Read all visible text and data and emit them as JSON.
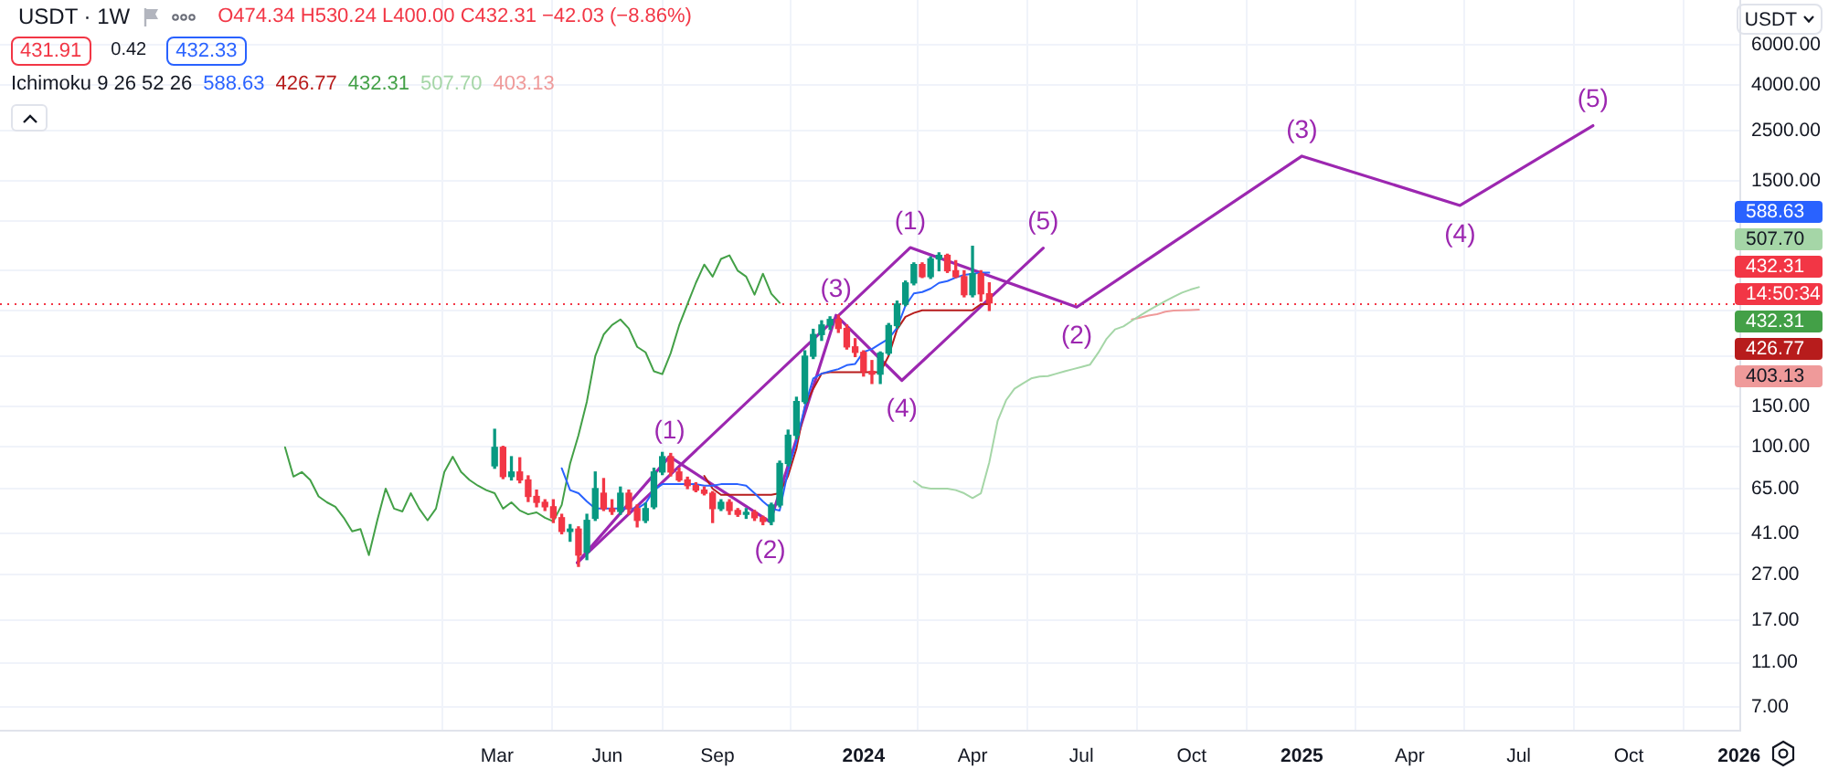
{
  "chart_data": {
    "type": "candlestick",
    "title": "USDT · 1W",
    "ylabel": "USDT",
    "legend_title": "Ichimoku 9 26 52 26",
    "legend": "top right",
    "log": true,
    "grid": true,
    "marker": "none",
    "annotations": [
      "O474.34 H530.24 L400.00 C432.31 −42.03 (−8.86%)",
      "431.91",
      "0.42",
      "432.33",
      "14:50:34",
      {
        "text": "(1)",
        "x": "2023-07-23",
        "y": 90.1
      },
      {
        "text": "(2)",
        "x": "2023-10-15",
        "y": 46.3
      },
      {
        "text": "(3)",
        "x": "2023-12-09",
        "y": 381
      },
      {
        "text": "(4)",
        "x": "2024-02-02",
        "y": 196
      },
      {
        "text": "(5)",
        "x": "2024-05-30",
        "y": 756
      },
      {
        "text": "(1)",
        "x": "2024-02-09",
        "y": 760
      },
      {
        "text": "(2)",
        "x": "2024-06-27",
        "y": 414
      },
      {
        "text": "(3)",
        "x": "2025-01-01",
        "y": 1932
      },
      {
        "text": "(4)",
        "x": "2025-05-13",
        "y": 1168
      },
      {
        "text": "(5)",
        "x": "2025-09-01",
        "y": 2638
      }
    ],
    "xlim": [
      "2022-01-10",
      "2026-01-02"
    ],
    "xticks": [
      {
        "value": "2023-03-01",
        "label": "Mar"
      },
      {
        "value": "2023-06-01",
        "label": "Jun"
      },
      {
        "value": "2023-09-01",
        "label": "Sep"
      },
      {
        "value": "2024-01-01",
        "label": "2024"
      },
      {
        "value": "2024-04-01",
        "label": "Apr"
      },
      {
        "value": "2024-07-01",
        "label": "Jul"
      },
      {
        "value": "2024-10-01",
        "label": "Oct"
      },
      {
        "value": "2025-01-01",
        "label": "2025"
      },
      {
        "value": "2025-04-01",
        "label": "Apr"
      },
      {
        "value": "2025-07-01",
        "label": "Jul"
      },
      {
        "value": "2025-10-01",
        "label": "Oct"
      },
      {
        "value": "2026-01-01",
        "label": "2026"
      }
    ],
    "ylim": [
      5.5,
      9500
    ],
    "yticks": [
      {
        "value": 7,
        "label": "7.00"
      },
      {
        "value": 11,
        "label": "11.00"
      },
      {
        "value": 17,
        "label": "17.00"
      },
      {
        "value": 27,
        "label": "27.00"
      },
      {
        "value": 41,
        "label": "41.00"
      },
      {
        "value": 65,
        "label": "65.00"
      },
      {
        "value": 100,
        "label": "100.00"
      },
      {
        "value": 150,
        "label": "150.00"
      },
      {
        "value": 250,
        "label": null
      },
      {
        "value": 400,
        "label": null
      },
      {
        "value": 600,
        "label": null
      },
      {
        "value": 1000,
        "label": null
      },
      {
        "value": 1500,
        "label": "1500.00"
      },
      {
        "value": 2500,
        "label": "2500.00"
      },
      {
        "value": 4000,
        "label": "4000.00"
      },
      {
        "value": 6000,
        "label": "6000.00"
      }
    ],
    "ref_lines": [
      {
        "axis": "y",
        "value": 432.31,
        "label": "432.31",
        "color": "#f23645",
        "line_style": "dotted"
      }
    ],
    "x": [
      "2023-02-27",
      "2023-03-06",
      "2023-03-13",
      "2023-03-20",
      "2023-03-27",
      "2023-04-03",
      "2023-04-10",
      "2023-04-17",
      "2023-04-24",
      "2023-05-01",
      "2023-05-08",
      "2023-05-15",
      "2023-05-22",
      "2023-05-29",
      "2023-06-05",
      "2023-06-12",
      "2023-06-19",
      "2023-06-26",
      "2023-07-03",
      "2023-07-10",
      "2023-07-17",
      "2023-07-24",
      "2023-07-31",
      "2023-08-07",
      "2023-08-14",
      "2023-08-21",
      "2023-08-28",
      "2023-09-04",
      "2023-09-11",
      "2023-09-18",
      "2023-09-25",
      "2023-10-02",
      "2023-10-09",
      "2023-10-16",
      "2023-10-23",
      "2023-10-30",
      "2023-11-06",
      "2023-11-13",
      "2023-11-20",
      "2023-11-27",
      "2023-12-04",
      "2023-12-11",
      "2023-12-18",
      "2023-12-25",
      "2024-01-01",
      "2024-01-08",
      "2024-01-15",
      "2024-01-22",
      "2024-01-29",
      "2024-02-05",
      "2024-02-12",
      "2024-02-19",
      "2024-02-26",
      "2024-03-04",
      "2024-03-11",
      "2024-03-18",
      "2024-03-25",
      "2024-04-01",
      "2024-04-08",
      "2024-04-15"
    ],
    "ohlc": [
      [
        82,
        119,
        80,
        99
      ],
      [
        99,
        100,
        72,
        73.5
      ],
      [
        73.5,
        90,
        71,
        77
      ],
      [
        77,
        89,
        69,
        71
      ],
      [
        71,
        74,
        57,
        60
      ],
      [
        60,
        64,
        54,
        56.5
      ],
      [
        56.5,
        58,
        52,
        54
      ],
      [
        54,
        58,
        46,
        48.3
      ],
      [
        48.3,
        50,
        41,
        42
      ],
      [
        42,
        45,
        38,
        43
      ],
      [
        43,
        44,
        29.4,
        33
      ],
      [
        34,
        50,
        31.5,
        47
      ],
      [
        48,
        77,
        47,
        65
      ],
      [
        62,
        72,
        52,
        53
      ],
      [
        53,
        58,
        50,
        51.5
      ],
      [
        51.5,
        66,
        50,
        62
      ],
      [
        62,
        64,
        50,
        53
      ],
      [
        53,
        55,
        44,
        47
      ],
      [
        47,
        56,
        46,
        53
      ],
      [
        54,
        80,
        53,
        77
      ],
      [
        77,
        94,
        75,
        90
      ],
      [
        90,
        93,
        74,
        77
      ],
      [
        77,
        80,
        70,
        71
      ],
      [
        71,
        73,
        65,
        67
      ],
      [
        67,
        69,
        63,
        64
      ],
      [
        64,
        66,
        61,
        62
      ],
      [
        62,
        63,
        46,
        53
      ],
      [
        53,
        58,
        52,
        56.5
      ],
      [
        56.5,
        58,
        50,
        52
      ],
      [
        52,
        53,
        49,
        50
      ],
      [
        50,
        53,
        48,
        51
      ],
      [
        51,
        52,
        47,
        48.3
      ],
      [
        48.3,
        49,
        45,
        46.5
      ],
      [
        46.5,
        56,
        45,
        55
      ],
      [
        55,
        86,
        54,
        84
      ],
      [
        84,
        118,
        82,
        112
      ],
      [
        112,
        165,
        108,
        158
      ],
      [
        158,
        265,
        155,
        251
      ],
      [
        251,
        330,
        245,
        313
      ],
      [
        313,
        360,
        295,
        345
      ],
      [
        345,
        375,
        330,
        365
      ],
      [
        365,
        381,
        320,
        333
      ],
      [
        333,
        345,
        270,
        276
      ],
      [
        276,
        300,
        250,
        261
      ],
      [
        261,
        265,
        205,
        215
      ],
      [
        215,
        240,
        190,
        209
      ],
      [
        209,
        262,
        190,
        259
      ],
      [
        259,
        350,
        255,
        343
      ],
      [
        343,
        440,
        335,
        427
      ],
      [
        427,
        540,
        420,
        530
      ],
      [
        530,
        650,
        520,
        639
      ],
      [
        639,
        650,
        560,
        565
      ],
      [
        565,
        690,
        555,
        677
      ],
      [
        677,
        720,
        600,
        702
      ],
      [
        702,
        710,
        590,
        600
      ],
      [
        600,
        665,
        560,
        565
      ],
      [
        565,
        600,
        460,
        470
      ],
      [
        470,
        770,
        460,
        582
      ],
      [
        582,
        600,
        440,
        474.34
      ],
      [
        474.34,
        530.24,
        400.0,
        432.31
      ]
    ],
    "colors": [
      "#089981",
      "#f23645",
      "#089981",
      "#f23645",
      "#f23645",
      "#f23645",
      "#f23645",
      "#f23645",
      "#f23645",
      "#089981",
      "#f23645",
      "#089981",
      "#089981",
      "#f23645",
      "#f23645",
      "#089981",
      "#f23645",
      "#f23645",
      "#089981",
      "#089981",
      "#089981",
      "#f23645",
      "#f23645",
      "#f23645",
      "#f23645",
      "#f23645",
      "#f23645",
      "#089981",
      "#f23645",
      "#f23645",
      "#089981",
      "#f23645",
      "#f23645",
      "#089981",
      "#089981",
      "#089981",
      "#089981",
      "#089981",
      "#089981",
      "#089981",
      "#089981",
      "#f23645",
      "#f23645",
      "#f23645",
      "#f23645",
      "#f23645",
      "#089981",
      "#089981",
      "#089981",
      "#089981",
      "#089981",
      "#f23645",
      "#089981",
      "#089981",
      "#f23645",
      "#f23645",
      "#f23645",
      "#089981",
      "#f23645",
      "#f23645"
    ],
    "series": [
      {
        "name": "588.63",
        "color": "#2962ff",
        "type": "line",
        "x": [
          "2023-04-24",
          "2023-05-01",
          "2023-05-08",
          "2023-05-15",
          "2023-05-22",
          "2023-05-29",
          "2023-06-05",
          "2023-06-12",
          "2023-06-19",
          "2023-06-26",
          "2023-07-03",
          "2023-07-10",
          "2023-07-17",
          "2023-07-24",
          "2023-07-31",
          "2023-08-07",
          "2023-08-14",
          "2023-08-21",
          "2023-08-28",
          "2023-09-04",
          "2023-09-11",
          "2023-09-18",
          "2023-09-25",
          "2023-10-02",
          "2023-10-09",
          "2023-10-16",
          "2023-10-23",
          "2023-10-30",
          "2023-11-06",
          "2023-11-13",
          "2023-11-20",
          "2023-11-27",
          "2023-12-04",
          "2023-12-11",
          "2023-12-18",
          "2023-12-25",
          "2024-01-01",
          "2024-01-08",
          "2024-01-15",
          "2024-01-22",
          "2024-01-29",
          "2024-02-05",
          "2024-02-12",
          "2024-02-19",
          "2024-02-26",
          "2024-03-04",
          "2024-03-11",
          "2024-03-18",
          "2024-03-25",
          "2024-04-01",
          "2024-04-08",
          "2024-04-15"
        ],
        "values": [
          80,
          64,
          62,
          57,
          53,
          53,
          53,
          53,
          53,
          53,
          56,
          64,
          68,
          68,
          68,
          68,
          68,
          67,
          67,
          68,
          68,
          68,
          67,
          62,
          57,
          53,
          52,
          78,
          105,
          150,
          200,
          210,
          215,
          220,
          229,
          232,
          262,
          270,
          285,
          300,
          335,
          420,
          476,
          483,
          500,
          530,
          540,
          560,
          575,
          582,
          588,
          588.63
        ]
      },
      {
        "name": "426.77",
        "color": "#b71c1c",
        "type": "line",
        "x": [
          "2023-08-21",
          "2023-08-28",
          "2023-09-04",
          "2023-09-11",
          "2023-09-18",
          "2023-09-25",
          "2023-10-02",
          "2023-10-09",
          "2023-10-16",
          "2023-10-23",
          "2023-10-30",
          "2023-11-06",
          "2023-11-13",
          "2023-11-20",
          "2023-11-27",
          "2023-12-04",
          "2023-12-11",
          "2023-12-18",
          "2023-12-25",
          "2024-01-01",
          "2024-01-08",
          "2024-01-15",
          "2024-01-22",
          "2024-01-29",
          "2024-02-05",
          "2024-02-12",
          "2024-02-19",
          "2024-02-26",
          "2024-03-04",
          "2024-03-11",
          "2024-03-18",
          "2024-03-25",
          "2024-04-01",
          "2024-04-08",
          "2024-04-15"
        ],
        "values": [
          74,
          65,
          61,
          61,
          61,
          61,
          61,
          61,
          61,
          62,
          74,
          98,
          150,
          180,
          210,
          213,
          213,
          213,
          213,
          213,
          213,
          213,
          252,
          330,
          375,
          390,
          401,
          401,
          401,
          401,
          401,
          401,
          401,
          426.77,
          426.77
        ]
      },
      {
        "name": "432.31",
        "color": "#43a047",
        "type": "line",
        "x": [
          "2022-09-05",
          "2022-09-12",
          "2022-09-19",
          "2022-09-26",
          "2022-10-03",
          "2022-10-10",
          "2022-10-17",
          "2022-10-24",
          "2022-10-31",
          "2022-11-07",
          "2022-11-14",
          "2022-11-21",
          "2022-11-28",
          "2022-12-05",
          "2022-12-12",
          "2022-12-19",
          "2022-12-26",
          "2023-01-02",
          "2023-01-09",
          "2023-01-16",
          "2023-01-23",
          "2023-01-30",
          "2023-02-06",
          "2023-02-13",
          "2023-02-20",
          "2023-02-27",
          "2023-03-06",
          "2023-03-13",
          "2023-03-20",
          "2023-03-27",
          "2023-04-03",
          "2023-04-10",
          "2023-04-17",
          "2023-04-24",
          "2023-05-01",
          "2023-05-08",
          "2023-05-15",
          "2023-05-22",
          "2023-05-29",
          "2023-06-05",
          "2023-06-12",
          "2023-06-19",
          "2023-06-26",
          "2023-07-03",
          "2023-07-10",
          "2023-07-17",
          "2023-07-24",
          "2023-07-31",
          "2023-08-07",
          "2023-08-14",
          "2023-08-21",
          "2023-08-28",
          "2023-09-04",
          "2023-09-11",
          "2023-09-18",
          "2023-09-25",
          "2023-10-02",
          "2023-10-09",
          "2023-10-16",
          "2023-10-23"
        ],
        "values": [
          99,
          73.5,
          77,
          71,
          60,
          56.5,
          54,
          48.3,
          42,
          43,
          33,
          47,
          65,
          53,
          51.5,
          62,
          53,
          47,
          53,
          77,
          90,
          77,
          71,
          67,
          64,
          62,
          53,
          56.5,
          52,
          50,
          51,
          48.3,
          46.5,
          55,
          84,
          112,
          158,
          251,
          313,
          345,
          365,
          333,
          276,
          261,
          215,
          209,
          259,
          343,
          427,
          530,
          639,
          565,
          677,
          702,
          600,
          565,
          470,
          582,
          474.34,
          432.31
        ]
      },
      {
        "name": "507.70",
        "color": "#a5d6a7",
        "type": "line",
        "x": [
          "2024-02-12",
          "2024-02-19",
          "2024-02-26",
          "2024-03-04",
          "2024-03-11",
          "2024-03-18",
          "2024-03-25",
          "2024-04-01",
          "2024-04-08",
          "2024-04-15",
          "2024-04-22",
          "2024-04-29",
          "2024-05-06",
          "2024-05-13",
          "2024-05-20",
          "2024-05-27",
          "2024-06-03",
          "2024-06-10",
          "2024-06-17",
          "2024-06-24",
          "2024-07-01",
          "2024-07-08",
          "2024-07-15",
          "2024-07-22",
          "2024-07-29",
          "2024-08-05",
          "2024-08-12",
          "2024-08-19",
          "2024-08-26",
          "2024-09-02",
          "2024-09-09",
          "2024-09-16",
          "2024-09-23",
          "2024-09-30",
          "2024-10-07"
        ],
        "values": [
          70,
          66,
          65,
          65,
          65,
          64,
          62,
          59,
          62,
          85,
          130,
          160,
          180,
          190,
          200,
          204,
          205,
          210,
          215,
          220,
          225,
          230,
          260,
          300,
          330,
          340,
          360,
          380,
          400,
          420,
          440,
          460,
          480,
          495,
          507.7
        ]
      },
      {
        "name": "403.13",
        "color": "#ef9a9a",
        "type": "line",
        "x": [
          "2024-08-12",
          "2024-08-19",
          "2024-08-26",
          "2024-09-02",
          "2024-09-09",
          "2024-09-16",
          "2024-09-23",
          "2024-09-30",
          "2024-10-07"
        ],
        "values": [
          365,
          372,
          380,
          385,
          395,
          400,
          401,
          402,
          403.13
        ]
      },
      {
        "color": "#9c27b0",
        "type": "line",
        "x": [
          "2023-05-07",
          "2023-07-23",
          "2023-10-15",
          "2023-12-09",
          "2024-02-02",
          "2024-05-30"
        ],
        "values": [
          30.5,
          90.1,
          46.3,
          381,
          196,
          756
        ]
      },
      {
        "color": "#9c27b0",
        "type": "line",
        "x": [
          "2023-05-07",
          "2024-02-09",
          "2024-06-27",
          "2025-01-01",
          "2025-05-13",
          "2025-09-01"
        ],
        "values": [
          30.5,
          760,
          414,
          1932,
          1168,
          2638
        ]
      }
    ]
  }
}
